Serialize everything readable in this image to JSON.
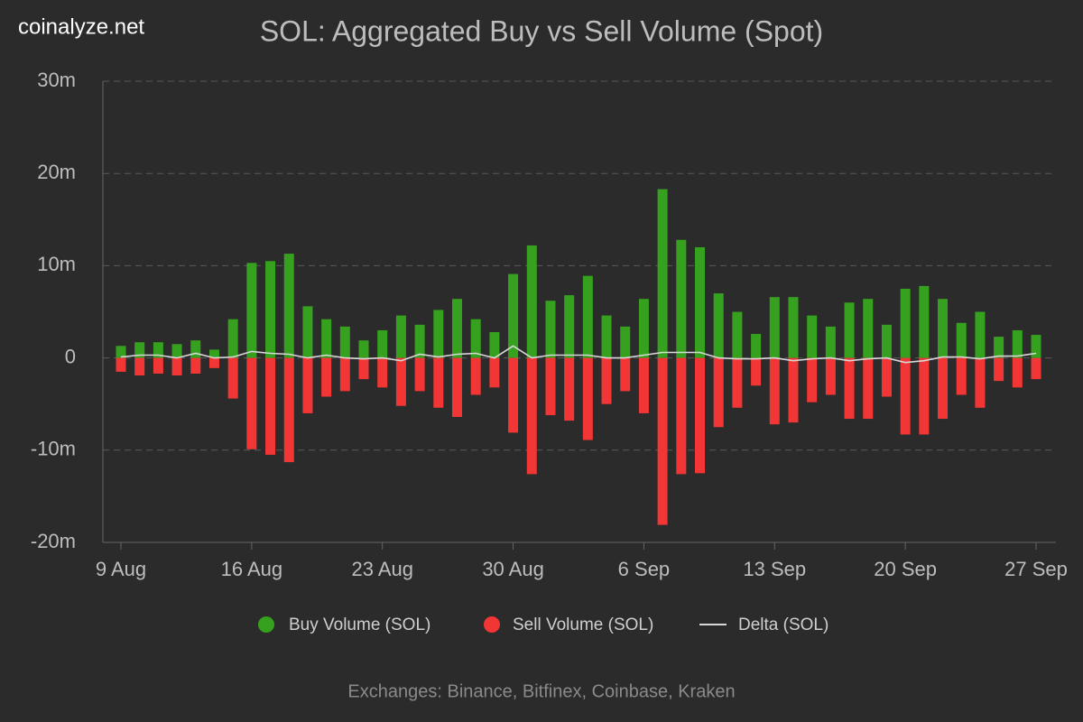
{
  "chart_data": {
    "type": "bar",
    "brand": "coinalyze.net",
    "title": "SOL: Aggregated Buy vs Sell Volume (Spot)",
    "caption": "Exchanges: Binance, Bitfinex, Coinbase, Kraken",
    "categories": [
      "9 Aug",
      null,
      null,
      null,
      null,
      null,
      null,
      "16 Aug",
      null,
      null,
      null,
      null,
      null,
      null,
      "23 Aug",
      null,
      null,
      null,
      null,
      null,
      null,
      "30 Aug",
      null,
      null,
      null,
      null,
      null,
      null,
      "6 Sep",
      null,
      null,
      null,
      null,
      null,
      null,
      "13 Sep",
      null,
      null,
      null,
      null,
      null,
      null,
      "20 Sep",
      null,
      null,
      null,
      null,
      null,
      null,
      "27 Sep"
    ],
    "series": [
      {
        "name": "Buy Volume (SOL)",
        "color": "#36a11f",
        "type": "bar",
        "values": [
          1300000,
          1700000,
          1700000,
          1500000,
          1900000,
          900000,
          4200000,
          10300000,
          10500000,
          11300000,
          5600000,
          4200000,
          3400000,
          1900000,
          3000000,
          4600000,
          3600000,
          5200000,
          6400000,
          4200000,
          2800000,
          9100000,
          12200000,
          6200000,
          6800000,
          8900000,
          4600000,
          3400000,
          6400000,
          18300000,
          12800000,
          12000000,
          7000000,
          5000000,
          2600000,
          6600000,
          6600000,
          4600000,
          3400000,
          6000000,
          6400000,
          3600000,
          7500000,
          7800000,
          6400000,
          3800000,
          5000000,
          2300000,
          3000000,
          2500000
        ]
      },
      {
        "name": "Sell Volume (SOL)",
        "color": "#f23636",
        "type": "bar",
        "values": [
          -1500000,
          -1900000,
          -1700000,
          -1900000,
          -1700000,
          -1100000,
          -4400000,
          -9900000,
          -10500000,
          -11300000,
          -6000000,
          -4200000,
          -3600000,
          -2300000,
          -3200000,
          -5200000,
          -3600000,
          -5400000,
          -6400000,
          -4000000,
          -3200000,
          -8100000,
          -12600000,
          -6200000,
          -6800000,
          -8900000,
          -5000000,
          -3600000,
          -6000000,
          -18100000,
          -12600000,
          -12500000,
          -7500000,
          -5400000,
          -3000000,
          -7200000,
          -7000000,
          -4800000,
          -4000000,
          -6600000,
          -6600000,
          -4200000,
          -8300000,
          -8300000,
          -6600000,
          -4000000,
          -5400000,
          -2500000,
          -3200000,
          -2300000
        ]
      },
      {
        "name": "Delta (SOL)",
        "color": "#d8d8d8",
        "type": "line",
        "values": [
          100000,
          300000,
          300000,
          0,
          500000,
          0,
          100000,
          700000,
          500000,
          400000,
          0,
          300000,
          0,
          -100000,
          0,
          -300000,
          400000,
          100000,
          400000,
          500000,
          0,
          1300000,
          0,
          300000,
          300000,
          300000,
          0,
          0,
          300000,
          600000,
          600000,
          600000,
          0,
          -100000,
          -100000,
          0,
          -300000,
          -100000,
          0,
          -300000,
          -100000,
          0,
          -500000,
          -300000,
          100000,
          100000,
          -100000,
          200000,
          200000,
          500000
        ]
      }
    ],
    "ylim": [
      -20000000,
      30000000
    ],
    "yticks": [
      {
        "value": -20000000,
        "label": "-20m"
      },
      {
        "value": -10000000,
        "label": "-10m"
      },
      {
        "value": 0,
        "label": "0"
      },
      {
        "value": 10000000,
        "label": "10m"
      },
      {
        "value": 20000000,
        "label": "20m"
      },
      {
        "value": 30000000,
        "label": "30m"
      }
    ],
    "grid": true
  }
}
